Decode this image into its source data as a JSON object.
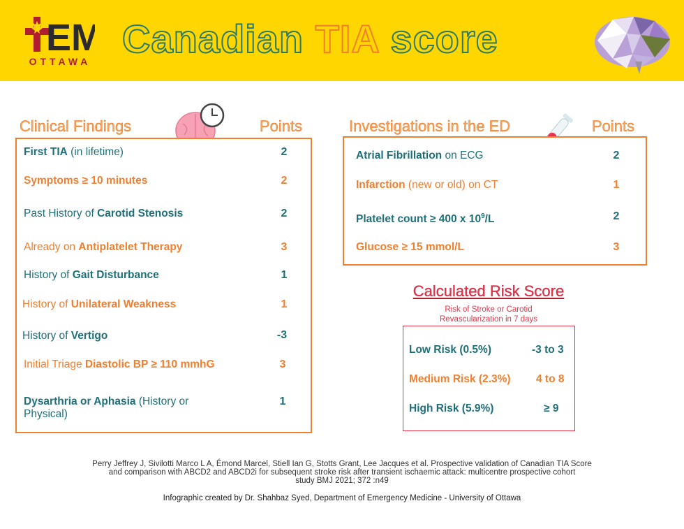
{
  "header": {
    "logo_text": "EM",
    "logo_sub": "OTTAWA",
    "title_part1": "Canadian",
    "title_part2": "TIA",
    "title_part3": "score"
  },
  "clinical": {
    "heading": "Clinical Findings",
    "points_heading": "Points",
    "rows": [
      {
        "pre": "",
        "bold": "First TIA",
        "post": " (in lifetime)",
        "points": "2",
        "color": "teal"
      },
      {
        "pre": "",
        "bold": "Symptoms ≥ 10 minutes",
        "post": "",
        "points": "2",
        "color": "orange"
      },
      {
        "pre": "Past History of ",
        "bold": "Carotid Stenosis",
        "post": "",
        "points": "2",
        "color": "teal"
      },
      {
        "pre": "Already on ",
        "bold": "Antiplatelet Therapy",
        "post": "",
        "points": "3",
        "color": "orange"
      },
      {
        "pre": "History of ",
        "bold": "Gait Disturbance",
        "post": "",
        "points": "1",
        "color": "teal"
      },
      {
        "pre": "History of ",
        "bold": "Unilateral Weakness",
        "post": "",
        "points": "1",
        "color": "orange"
      },
      {
        "pre": "History of ",
        "bold": "Vertigo",
        "post": "",
        "points": "-3",
        "color": "teal"
      },
      {
        "pre": "Initial Triage ",
        "bold": "Diastolic BP ≥ 110 mmhG",
        "post": "",
        "points": "3",
        "color": "orange"
      },
      {
        "pre": "",
        "bold": "Dysarthria or Aphasia",
        "post": " (History or Physical)",
        "points": "1",
        "color": "teal"
      }
    ]
  },
  "investigations": {
    "heading": "Investigations in the ED",
    "points_heading": "Points",
    "rows": [
      {
        "bold": "Atrial Fibrillation",
        "post": " on ECG",
        "points": "2",
        "color": "teal"
      },
      {
        "bold": "Infarction",
        "post": " (new or old) on CT",
        "points": "1",
        "color": "orange"
      },
      {
        "bold": "Platelet count ≥ 400 x 10",
        "sup": "9",
        "bold2": "/L",
        "points": "2",
        "color": "teal"
      },
      {
        "bold": "Glucose ≥ 15 mmol/L",
        "post": "",
        "points": "3",
        "color": "orange"
      }
    ]
  },
  "risk": {
    "title": "Calculated Risk Score",
    "subtitle_line1": "Risk of Stroke or Carotid",
    "subtitle_line2": "Revascularization in 7 days",
    "rows": [
      {
        "label": "Low Risk (0.5%)",
        "range": "-3 to 3",
        "color": "teal"
      },
      {
        "label": "Medium Risk (2.3%)",
        "range": "4 to 8",
        "color": "orange"
      },
      {
        "label": "High Risk (5.9%)",
        "range": "≥ 9",
        "color": "teal"
      }
    ]
  },
  "footer": {
    "reference_line1": "Perry Jeffrey J, Sivilotti Marco L A, Émond Marcel, Stiell Ian G, Stotts Grant, Lee Jacques et al. Prospective validation of Canadian TIA Score",
    "reference_line2": "and comparison with ABCD2 and ABCD2i for subsequent stroke risk after transient ischaemic attack: multicentre prospective cohort",
    "reference_line3": "study BMJ 2021; 372 :n49",
    "credit": "Infographic created by Dr. Shahbaz Syed, Department of Emergency Medicine - University of Ottawa"
  },
  "colors": {
    "header_bg": "#ffd600",
    "teal": "#1f6f78",
    "orange": "#f07f2f",
    "red": "#e8324a"
  }
}
